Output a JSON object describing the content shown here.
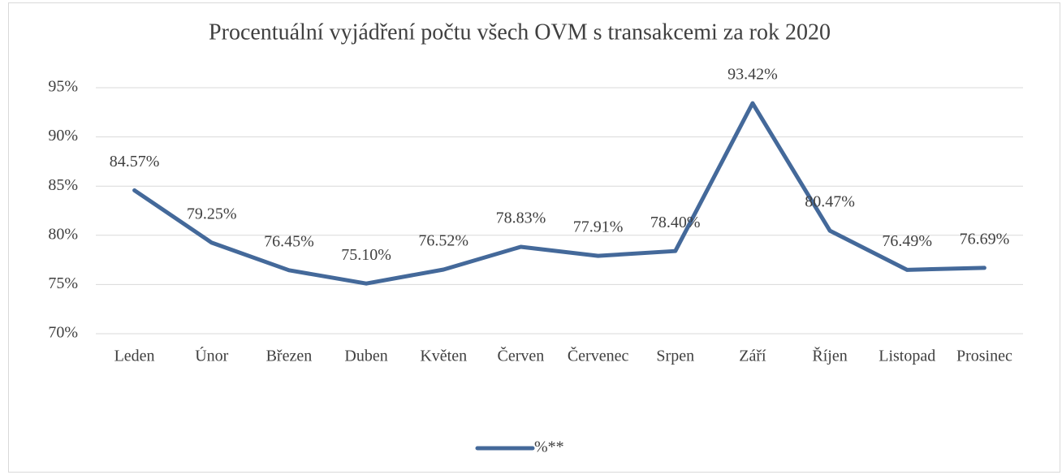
{
  "chart_data": {
    "type": "line",
    "title": "Procentuální vyjádření počtu všech OVM s transakcemi za rok 2020",
    "categories": [
      "Leden",
      "Únor",
      "Březen",
      "Duben",
      "Květen",
      "Červen",
      "Červenec",
      "Srpen",
      "Září",
      "Říjen",
      "Listopad",
      "Prosinec"
    ],
    "series": [
      {
        "name": "%**",
        "color": "#44699a",
        "values": [
          84.57,
          79.25,
          76.45,
          75.1,
          76.52,
          78.83,
          77.91,
          78.4,
          93.42,
          80.47,
          76.49,
          76.69
        ],
        "value_labels": [
          "84.57%",
          "79.25%",
          "76.45%",
          "75.10%",
          "76.52%",
          "78.83%",
          "77.91%",
          "78.40%",
          "93.42%",
          "80.47%",
          "76.49%",
          "76.69%"
        ]
      }
    ],
    "ylim": [
      70,
      95
    ],
    "yticks": [
      {
        "value": 70,
        "label": "70%"
      },
      {
        "value": 75,
        "label": "75%"
      },
      {
        "value": 80,
        "label": "80%"
      },
      {
        "value": 85,
        "label": "85%"
      },
      {
        "value": 90,
        "label": "90%"
      },
      {
        "value": 95,
        "label": "95%"
      }
    ],
    "grid": true,
    "legend": "bottom"
  }
}
